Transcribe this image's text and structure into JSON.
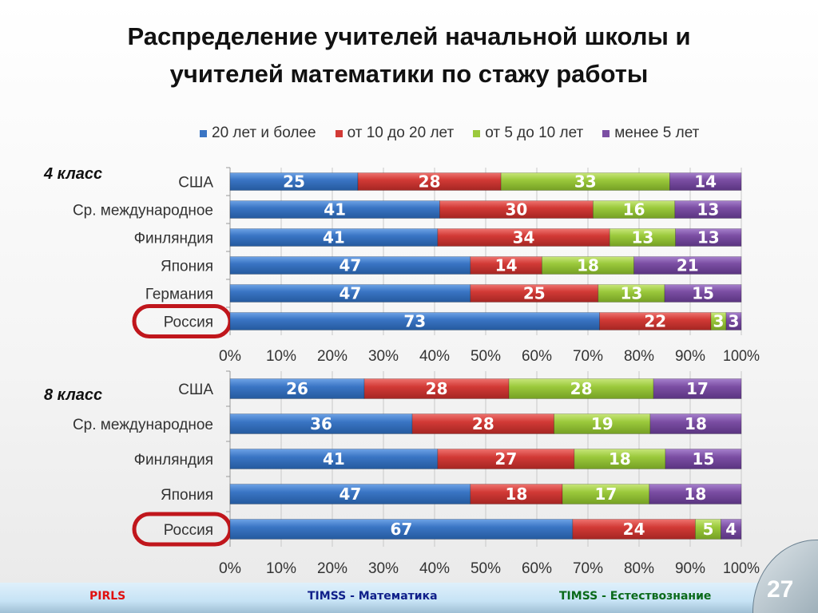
{
  "title_line1": "Распределение учителей начальной школы и",
  "title_line2": "учителей математики по стажу работы",
  "legend": [
    {
      "label": "20 лет и более",
      "color": "#3a75c4"
    },
    {
      "label": "от 10 до 20 лет",
      "color": "#d23a36"
    },
    {
      "label": "от 5 до 10 лет",
      "color": "#9bc93c"
    },
    {
      "label": "менее 5 лет",
      "color": "#7b4ea3"
    }
  ],
  "chart_data": [
    {
      "type": "bar",
      "stacked": true,
      "orientation": "horizontal",
      "label": "4 класс",
      "categories": [
        "США",
        "Ср. международное",
        "Финляндия",
        "Япония",
        "Германия",
        "Россия"
      ],
      "highlighted": "Россия",
      "series": [
        {
          "name": "20 лет и более",
          "values": [
            25,
            41,
            41,
            47,
            47,
            73
          ]
        },
        {
          "name": "от 10 до 20 лет",
          "values": [
            28,
            30,
            34,
            14,
            25,
            22
          ]
        },
        {
          "name": "от 5 до 10 лет",
          "values": [
            33,
            16,
            13,
            18,
            13,
            3
          ]
        },
        {
          "name": "менее 5 лет",
          "values": [
            14,
            13,
            13,
            21,
            15,
            3
          ]
        }
      ],
      "xlim": [
        0,
        100
      ],
      "xticks": [
        "0%",
        "10%",
        "20%",
        "30%",
        "40%",
        "50%",
        "60%",
        "70%",
        "80%",
        "90%",
        "100%"
      ],
      "grid": true
    },
    {
      "type": "bar",
      "stacked": true,
      "orientation": "horizontal",
      "label": "8 класс",
      "categories": [
        "США",
        "Ср. международное",
        "Финляндия",
        "Япония",
        "Россия"
      ],
      "highlighted": "Россия",
      "series": [
        {
          "name": "20 лет и более",
          "values": [
            26,
            36,
            41,
            47,
            67
          ]
        },
        {
          "name": "от 10 до 20 лет",
          "values": [
            28,
            28,
            27,
            18,
            24
          ]
        },
        {
          "name": "от 5 до 10 лет",
          "values": [
            28,
            19,
            18,
            17,
            5
          ]
        },
        {
          "name": "менее 5 лет",
          "values": [
            17,
            18,
            15,
            18,
            4
          ]
        }
      ],
      "xlim": [
        0,
        100
      ],
      "xticks": [
        "0%",
        "10%",
        "20%",
        "30%",
        "40%",
        "50%",
        "60%",
        "70%",
        "80%",
        "90%",
        "100%"
      ],
      "grid": true
    }
  ],
  "footer": {
    "pirls": "PIRLS",
    "timss_math": "TIMSS - Математика",
    "timss_science": "TIMSS - Естествознание",
    "page_number": "27"
  }
}
